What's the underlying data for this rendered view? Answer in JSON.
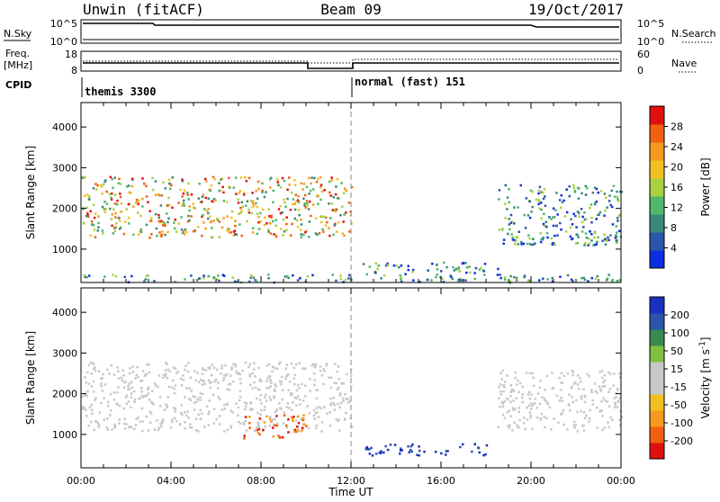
{
  "header": {
    "site": "Unwin (fitACF)",
    "beam": "Beam 09",
    "date": "19/Oct/2017"
  },
  "panel_labels": {
    "nsky": "N.Sky",
    "nsearch": "N.Search",
    "freq_line1": "Freq.",
    "freq_line2": "[MHz]",
    "nave": "Nave",
    "cpid": "CPID"
  },
  "top_axes": {
    "noise_left_ticks": [
      "10^5",
      "10^0"
    ],
    "noise_right_ticks": [
      "10^5",
      "10^0"
    ],
    "freq_left_ticks": [
      "18",
      "8"
    ],
    "nave_right_ticks": [
      "60",
      "0"
    ]
  },
  "cpid_labels": [
    "themis 3300",
    "normal (fast) 151"
  ],
  "time_axis": {
    "label": "Time UT",
    "ticks": [
      "00:00",
      "04:00",
      "08:00",
      "12:00",
      "16:00",
      "20:00",
      "00:00"
    ]
  },
  "colors": {
    "power_scale": [
      "#0a2fe0",
      "#2a55a8",
      "#3a8a78",
      "#4fb86a",
      "#a8d040",
      "#f2c020",
      "#f49a20",
      "#f06010",
      "#e01010"
    ],
    "velocity_scale": [
      "#e01010",
      "#f06010",
      "#f49a20",
      "#f2c020",
      "#c8c8c8",
      "#c8c8c8",
      "#80c040",
      "#3a8a50",
      "#2a55a8",
      "#1a30c0"
    ]
  },
  "chart_data": [
    {
      "type": "heatmap",
      "title": "",
      "xlabel": "",
      "ylabel": "Slant Range [km]",
      "ylim": [
        180,
        4600
      ],
      "xlim": [
        0,
        24
      ],
      "yticks": [
        "1000",
        "2000",
        "3000",
        "4000"
      ],
      "colorbar": {
        "label": "Power [dB]",
        "ticks": [
          "4",
          "8",
          "12",
          "16",
          "20",
          "24",
          "28"
        ],
        "range": [
          0,
          30
        ]
      },
      "features": [
        {
          "name": "E-region scatter",
          "x_range": [
            0,
            24
          ],
          "y_range": [
            200,
            400
          ]
        },
        {
          "name": "main F band",
          "x_range": [
            0,
            12
          ],
          "y_range": [
            1300,
            2800
          ]
        },
        {
          "name": "afternoon echoes",
          "x_range": [
            12.5,
            18.5
          ],
          "y_range": [
            400,
            700
          ]
        },
        {
          "name": "evening band",
          "x_range": [
            18.5,
            24
          ],
          "y_range": [
            1100,
            2600
          ]
        }
      ]
    },
    {
      "type": "heatmap",
      "title": "",
      "xlabel": "Time UT",
      "ylabel": "Slant Range [km]",
      "ylim": [
        180,
        4600
      ],
      "xlim": [
        0,
        24
      ],
      "yticks": [
        "1000",
        "2000",
        "3000",
        "4000"
      ],
      "colorbar": {
        "label": "Velocity [m s^-1]",
        "ticks": [
          "200",
          "100",
          "50",
          "15",
          "-15",
          "-50",
          "-100",
          "-200"
        ],
        "range": [
          -250,
          250
        ]
      },
      "features": [
        {
          "name": "low-velocity band",
          "x_range": [
            0,
            12
          ],
          "y_range": [
            1100,
            2800
          ]
        },
        {
          "name": "negative velocity patch",
          "x_range": [
            7.2,
            10
          ],
          "y_range": [
            900,
            1500
          ]
        },
        {
          "name": "positive velocity patch",
          "x_range": [
            12.5,
            18
          ],
          "y_range": [
            500,
            800
          ]
        },
        {
          "name": "evening band",
          "x_range": [
            18.5,
            24
          ],
          "y_range": [
            1100,
            2600
          ]
        }
      ]
    }
  ]
}
